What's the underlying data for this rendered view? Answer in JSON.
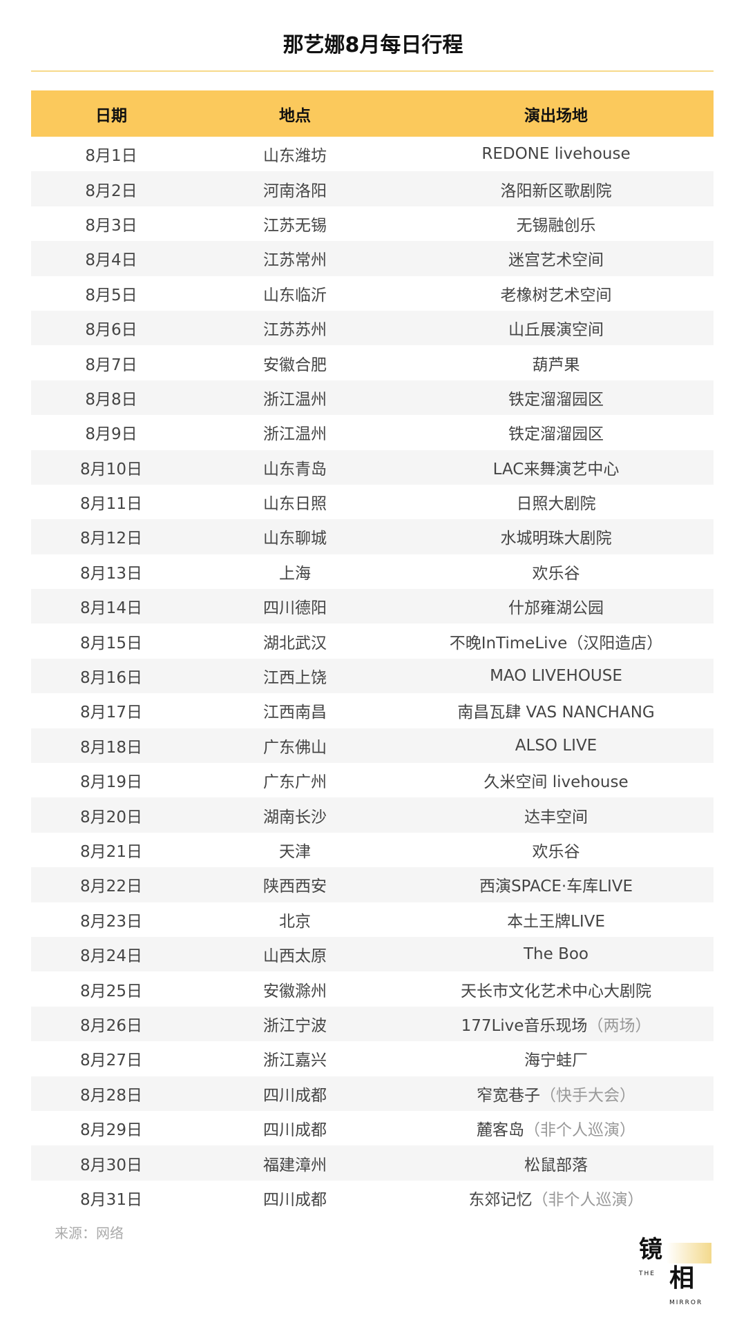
{
  "title": "那艺娜8月每日行程",
  "headers": [
    "日期",
    "地点",
    "演出场地"
  ],
  "rows": [
    {
      "date": "8月1日",
      "place": "山东潍坊",
      "venue": "REDONE livehouse",
      "note": ""
    },
    {
      "date": "8月2日",
      "place": "河南洛阳",
      "venue": "洛阳新区歌剧院",
      "note": ""
    },
    {
      "date": "8月3日",
      "place": "江苏无锡",
      "venue": "无锡融创乐",
      "note": ""
    },
    {
      "date": "8月4日",
      "place": "江苏常州",
      "venue": "迷宫艺术空间",
      "note": ""
    },
    {
      "date": "8月5日",
      "place": "山东临沂",
      "venue": "老橡树艺术空间",
      "note": ""
    },
    {
      "date": "8月6日",
      "place": "江苏苏州",
      "venue": "山丘展演空间",
      "note": ""
    },
    {
      "date": "8月7日",
      "place": "安徽合肥",
      "venue": "葫芦果",
      "note": ""
    },
    {
      "date": "8月8日",
      "place": "浙江温州",
      "venue": "铁定溜溜园区",
      "note": ""
    },
    {
      "date": "8月9日",
      "place": "浙江温州",
      "venue": "铁定溜溜园区",
      "note": ""
    },
    {
      "date": "8月10日",
      "place": "山东青岛",
      "venue": "LAC来舞演艺中心",
      "note": ""
    },
    {
      "date": "8月11日",
      "place": "山东日照",
      "venue": "日照大剧院",
      "note": ""
    },
    {
      "date": "8月12日",
      "place": "山东聊城",
      "venue": "水城明珠大剧院",
      "note": ""
    },
    {
      "date": "8月13日",
      "place": "上海",
      "venue": "欢乐谷",
      "note": ""
    },
    {
      "date": "8月14日",
      "place": "四川德阳",
      "venue": "什邡雍湖公园",
      "note": ""
    },
    {
      "date": "8月15日",
      "place": "湖北武汉",
      "venue": "不晚InTimeLive（汉阳造店）",
      "note": ""
    },
    {
      "date": "8月16日",
      "place": "江西上饶",
      "venue": "MAO LIVEHOUSE",
      "note": ""
    },
    {
      "date": "8月17日",
      "place": "江西南昌",
      "venue": "南昌瓦肆 VAS NANCHANG",
      "note": ""
    },
    {
      "date": "8月18日",
      "place": "广东佛山",
      "venue": "ALSO LIVE",
      "note": ""
    },
    {
      "date": "8月19日",
      "place": "广东广州",
      "venue": "久米空间 livehouse",
      "note": ""
    },
    {
      "date": "8月20日",
      "place": "湖南长沙",
      "venue": "达丰空间",
      "note": ""
    },
    {
      "date": "8月21日",
      "place": "天津",
      "venue": "欢乐谷",
      "note": ""
    },
    {
      "date": "8月22日",
      "place": "陕西西安",
      "venue": "西演SPACE·车库LIVE",
      "note": ""
    },
    {
      "date": "8月23日",
      "place": "北京",
      "venue": "本土王牌LIVE",
      "note": ""
    },
    {
      "date": "8月24日",
      "place": "山西太原",
      "venue": "The Boo",
      "note": ""
    },
    {
      "date": "8月25日",
      "place": "安徽滁州",
      "venue": "天长市文化艺术中心大剧院",
      "note": ""
    },
    {
      "date": "8月26日",
      "place": "浙江宁波",
      "venue": "177Live音乐现场",
      "note": "（两场）"
    },
    {
      "date": "8月27日",
      "place": "浙江嘉兴",
      "venue": "海宁蛙厂",
      "note": ""
    },
    {
      "date": "8月28日",
      "place": "四川成都",
      "venue": "窄宽巷子",
      "note": "（快手大会）"
    },
    {
      "date": "8月29日",
      "place": "四川成都",
      "venue": "麓客岛",
      "note": "（非个人巡演）"
    },
    {
      "date": "8月30日",
      "place": "福建漳州",
      "venue": "松鼠部落",
      "note": ""
    },
    {
      "date": "8月31日",
      "place": "四川成都",
      "venue": "东郊记忆",
      "note": "（非个人巡演）"
    }
  ],
  "source": "来源：网络",
  "logo": {
    "text": "镜相",
    "sub1": "THE",
    "sub2": "MIRROR"
  },
  "colors": {
    "header": "#fbc95c",
    "rule": "#f7d98a",
    "alt_row": "#f5f5f5"
  }
}
